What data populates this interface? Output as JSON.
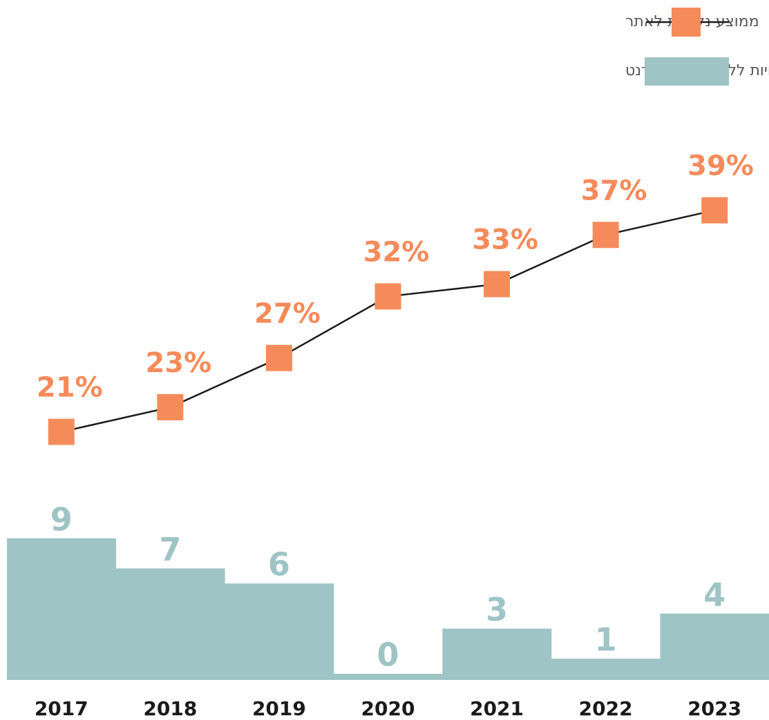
{
  "chart_data": {
    "type": "combo",
    "categories": [
      "2017",
      "2018",
      "2019",
      "2020",
      "2021",
      "2022",
      "2023"
    ],
    "series": [
      {
        "name": "רשויות ללא אתר אינטרנט",
        "type": "bar",
        "color": "#9fc4c5",
        "values": [
          9,
          7,
          6,
          0,
          3,
          1,
          4
        ]
      },
      {
        "name": "ממוצע נקודות לאתר",
        "type": "line",
        "color": "#f58b5a",
        "line_color": "#1a1a1a",
        "values": [
          21,
          23,
          27,
          32,
          33,
          37,
          39
        ],
        "value_labels": [
          "21%",
          "23%",
          "27%",
          "32%",
          "33%",
          "37%",
          "39%"
        ]
      }
    ]
  }
}
